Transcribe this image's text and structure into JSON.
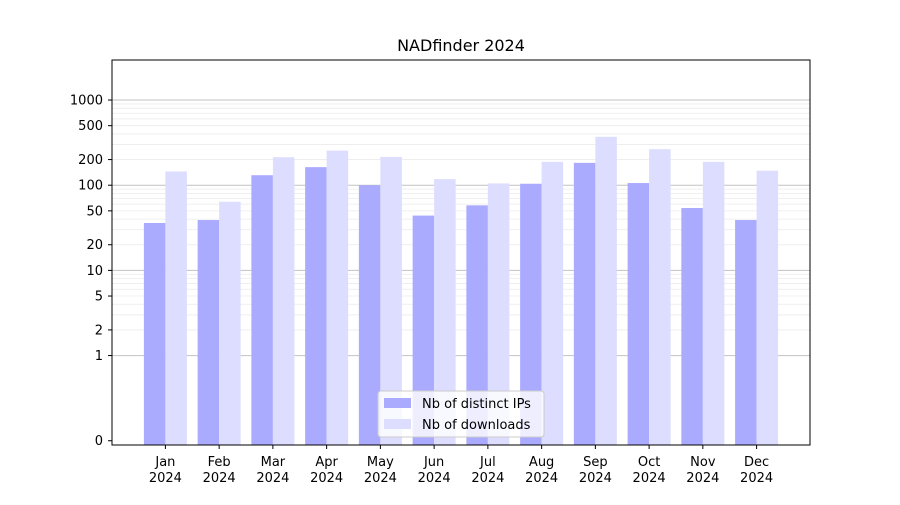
{
  "chart_data": {
    "type": "bar",
    "title": "NADfinder 2024",
    "xlabel": "",
    "ylabel": "",
    "y_scale": "symlog",
    "y_ticks": [
      0,
      1,
      2,
      5,
      10,
      20,
      50,
      100,
      200,
      500,
      1000
    ],
    "y_tick_labels": [
      "0",
      "1",
      "2",
      "5",
      "10",
      "20",
      "50",
      "100",
      "200",
      "500",
      "1000"
    ],
    "ylim": [
      0,
      1300
    ],
    "grid": true,
    "legend_position": "bottom-center",
    "categories": [
      [
        "Jan",
        "2024"
      ],
      [
        "Feb",
        "2024"
      ],
      [
        "Mar",
        "2024"
      ],
      [
        "Apr",
        "2024"
      ],
      [
        "May",
        "2024"
      ],
      [
        "Jun",
        "2024"
      ],
      [
        "Jul",
        "2024"
      ],
      [
        "Aug",
        "2024"
      ],
      [
        "Sep",
        "2024"
      ],
      [
        "Oct",
        "2024"
      ],
      [
        "Nov",
        "2024"
      ],
      [
        "Dec",
        "2024"
      ]
    ],
    "series": [
      {
        "name": "Nb of distinct IPs",
        "color": "#aaaaff",
        "values": [
          36,
          39,
          131,
          163,
          100,
          44,
          58,
          104,
          183,
          106,
          54,
          39
        ]
      },
      {
        "name": "Nb of downloads",
        "color": "#ddddff",
        "values": [
          145,
          64,
          213,
          255,
          215,
          118,
          105,
          188,
          370,
          265,
          188,
          148
        ]
      }
    ]
  }
}
